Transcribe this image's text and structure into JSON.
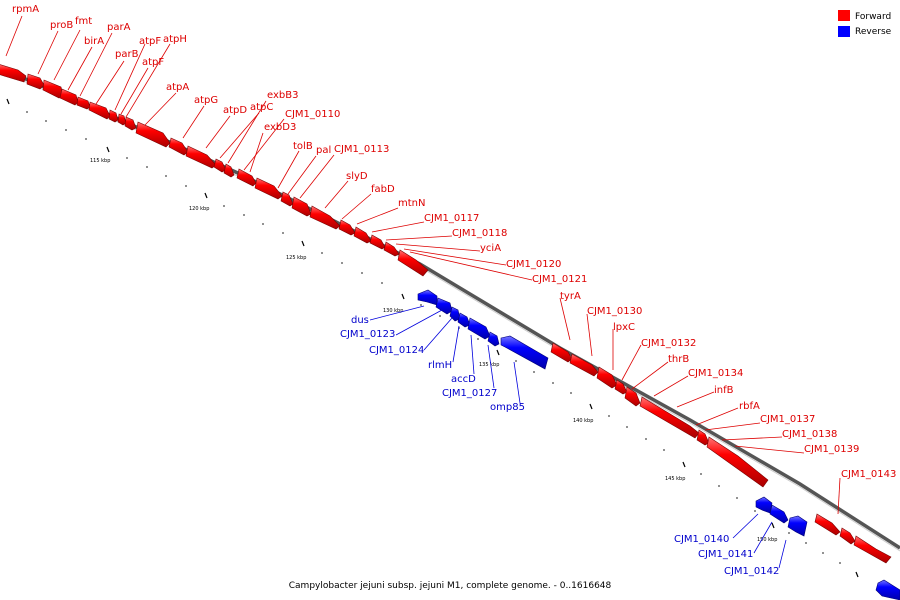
{
  "legend": {
    "forward": {
      "label": "Forward",
      "color": "#ff0000"
    },
    "reverse": {
      "label": "Reverse",
      "color": "#0000ff"
    }
  },
  "caption": "Campylobacter jejuni subsp. jejuni M1, complete genome. - 0..1616648",
  "scale_labels": [
    "115 kbp",
    "120 kbp",
    "125 kbp",
    "130 kbp",
    "135 kbp",
    "140 kbp",
    "145 kbp",
    "150 kbp"
  ],
  "genes_forward": [
    "rpmA",
    "proB",
    "fmt",
    "birA",
    "parA",
    "parB",
    "atpF",
    "atpF",
    "atpH",
    "atpA",
    "atpG",
    "atpD",
    "atpC",
    "exbB3",
    "CJM1_0110",
    "exbD3",
    "tolB",
    "pal",
    "CJM1_0113",
    "slyD",
    "fabD",
    "mtnN",
    "CJM1_0117",
    "CJM1_0118",
    "yciA",
    "CJM1_0120",
    "CJM1_0121",
    "tyrA",
    "CJM1_0130",
    "lpxC",
    "CJM1_0132",
    "thrB",
    "CJM1_0134",
    "infB",
    "rbfA",
    "CJM1_0137",
    "CJM1_0138",
    "CJM1_0139",
    "CJM1_0143"
  ],
  "genes_reverse": [
    "dus",
    "CJM1_0123",
    "CJM1_0124",
    "rlmH",
    "accD",
    "CJM1_0127",
    "omp85",
    "CJM1_0140",
    "CJM1_0141",
    "CJM1_0142"
  ]
}
